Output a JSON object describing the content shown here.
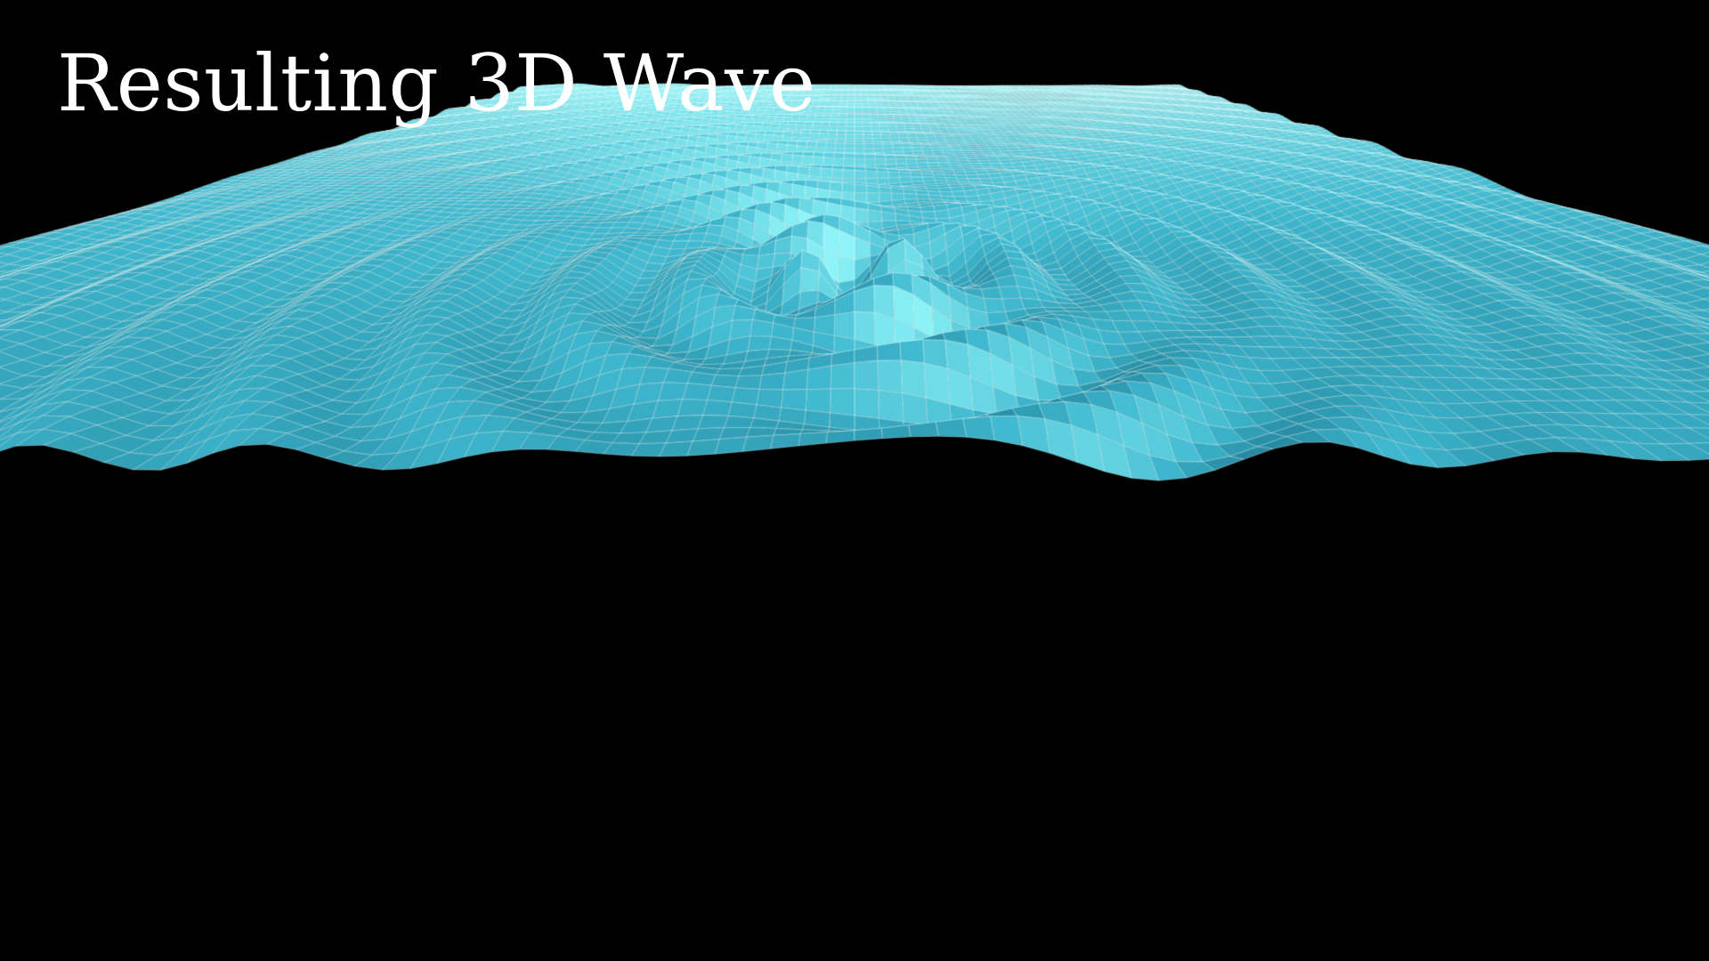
{
  "title": "Resulting 3D Wave",
  "colors": {
    "background": "#000000",
    "surface_deep": "#1f7f97",
    "surface_mid": "#3fb8cf",
    "surface_crest": "#8ff4f8",
    "mesh_line": "#e8ffff",
    "title_text": "#ffffff"
  }
}
